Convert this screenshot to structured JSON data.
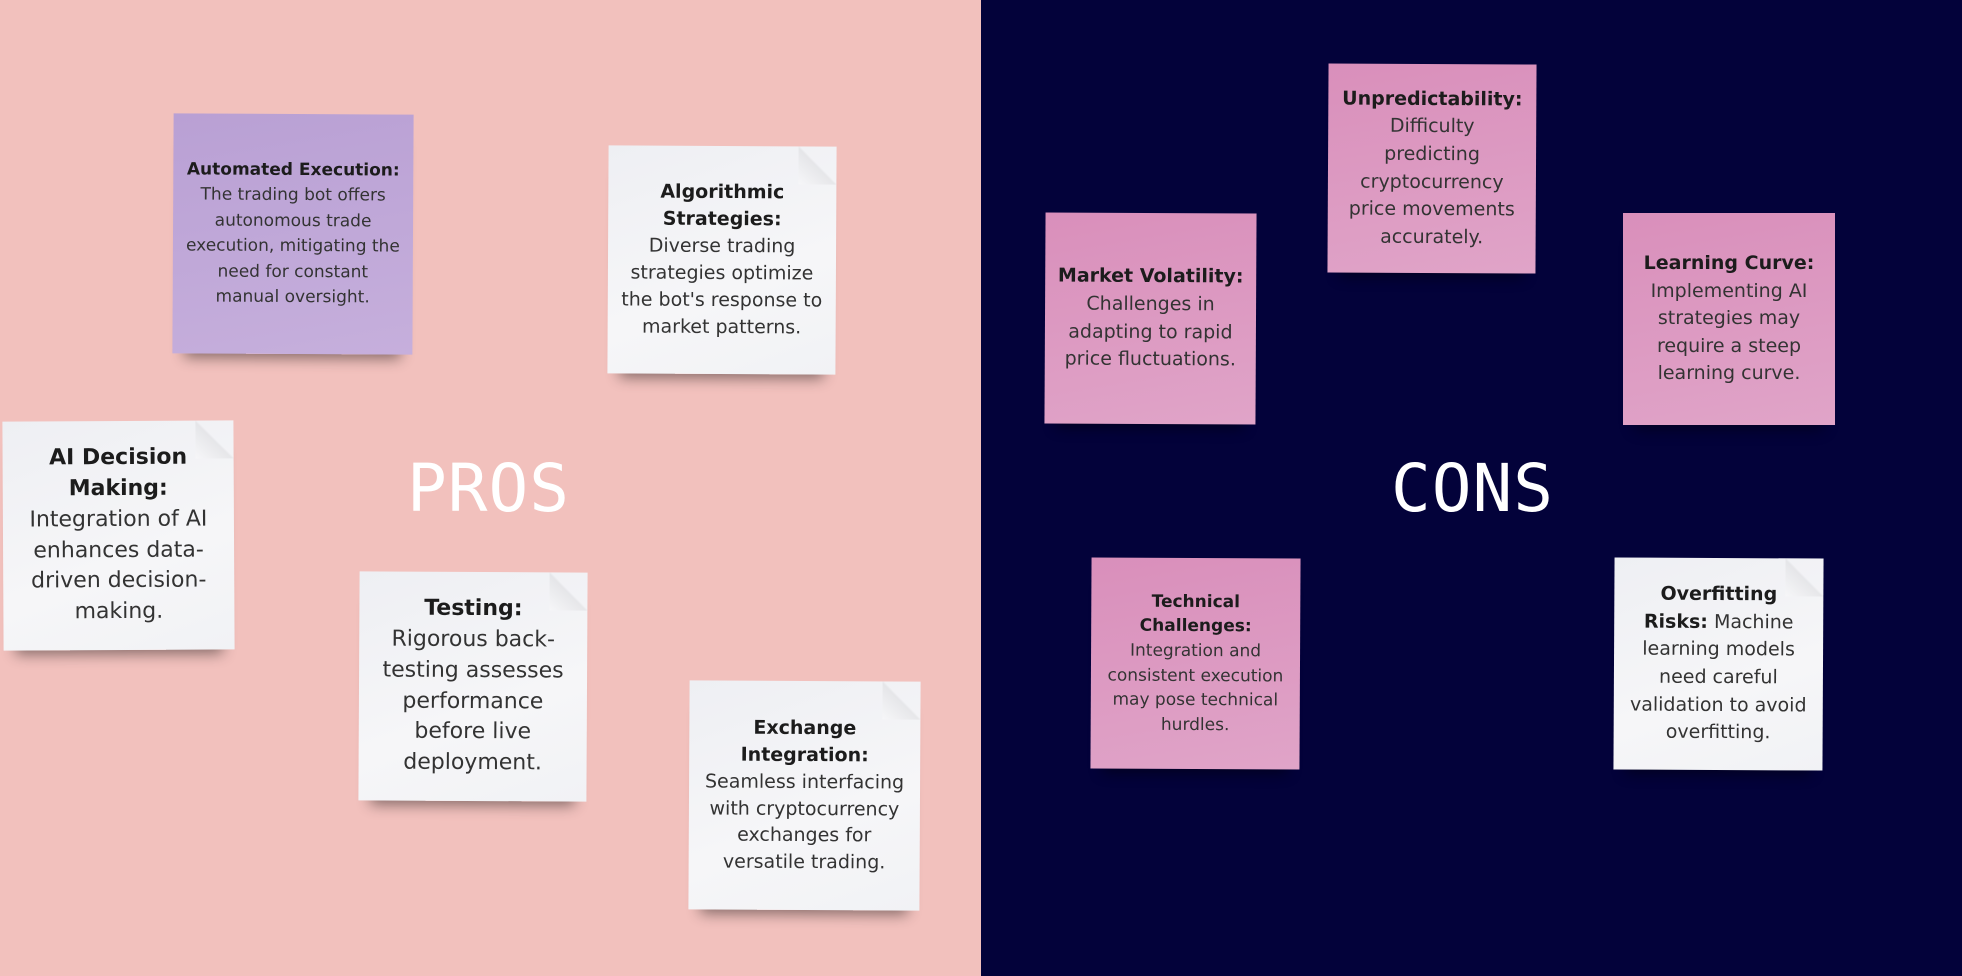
{
  "board": {
    "left_label": "PROS",
    "right_label": "CONS",
    "left_bg": "#f2c1bd",
    "right_bg": "#03023a"
  },
  "pros": [
    {
      "title": "Automated Execution:",
      "body": "The trading bot offers autonomous trade execution, mitigating the need for constant manual oversight.",
      "color": "purple"
    },
    {
      "title": "Algorithmic Strategies:",
      "body": "Diverse trading strategies optimize the bot's response to market patterns.",
      "color": "white"
    },
    {
      "title": "AI Decision Making:",
      "body": "Integration of AI enhances data-driven decision-making.",
      "color": "white"
    },
    {
      "title": "Testing:",
      "body": "Rigorous back-testing assesses performance before live deployment.",
      "color": "white"
    },
    {
      "title": "Exchange Integration:",
      "body": "Seamless interfacing with cryptocurrency exchanges for versatile trading.",
      "color": "white"
    }
  ],
  "cons": [
    {
      "title": "Unpredictability:",
      "body": "Difficulty predicting cryptocurrency price movements accurately.",
      "color": "pink"
    },
    {
      "title": "Market Volatility:",
      "body": "Challenges in adapting to rapid price fluctuations.",
      "color": "pink"
    },
    {
      "title": "Learning Curve:",
      "body": "Implementing AI strategies may require a steep learning curve.",
      "color": "pink"
    },
    {
      "title": "Technical Challenges:",
      "body": "Integration and consistent execution may pose technical hurdles.",
      "color": "pink"
    },
    {
      "title": "Overfitting Risks:",
      "body": "Machine learning models need careful validation to avoid overfitting.",
      "color": "white"
    }
  ]
}
